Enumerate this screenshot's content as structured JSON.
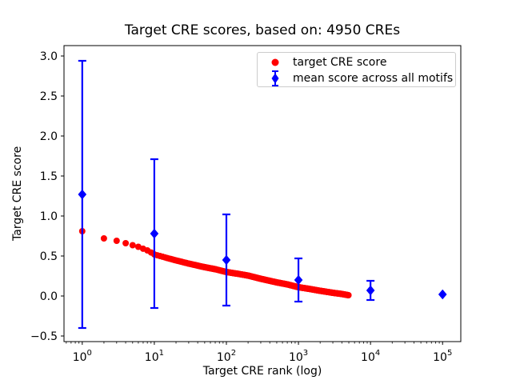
{
  "chart_data": {
    "type": "scatter",
    "title": "Target CRE scores, based on: 4950 CREs",
    "xlabel": "Target CRE rank (log)",
    "ylabel": "Target CRE score",
    "x_scale": "log",
    "xlim": [
      0.558,
      179000
    ],
    "ylim": [
      -0.57,
      3.13
    ],
    "grid": false,
    "legend_position": "upper right",
    "x_ticks": [
      {
        "value": 1,
        "base": "10",
        "exp": "0"
      },
      {
        "value": 10,
        "base": "10",
        "exp": "1"
      },
      {
        "value": 100,
        "base": "10",
        "exp": "2"
      },
      {
        "value": 1000,
        "base": "10",
        "exp": "3"
      },
      {
        "value": 10000,
        "base": "10",
        "exp": "4"
      },
      {
        "value": 100000,
        "base": "10",
        "exp": "5"
      }
    ],
    "y_ticks": [
      {
        "value": 3.0,
        "label": "3.0"
      },
      {
        "value": 2.5,
        "label": "2.5"
      },
      {
        "value": 2.0,
        "label": "2.0"
      },
      {
        "value": 1.5,
        "label": "1.5"
      },
      {
        "value": 1.0,
        "label": "1.0"
      },
      {
        "value": 0.5,
        "label": "0.5"
      },
      {
        "value": 0.0,
        "label": "0.0"
      },
      {
        "value": -0.5,
        "label": "−0.5"
      }
    ],
    "series": [
      {
        "name": "target CRE score",
        "type": "scatter",
        "marker": "circle",
        "color": "#ff0000",
        "n_points": 4950,
        "x_is_integer_rank": true,
        "control_points": [
          [
            1,
            0.81
          ],
          [
            2,
            0.72
          ],
          [
            3,
            0.69
          ],
          [
            4,
            0.66
          ],
          [
            5,
            0.635
          ],
          [
            6,
            0.615
          ],
          [
            8,
            0.57
          ],
          [
            10,
            0.52
          ],
          [
            15,
            0.475
          ],
          [
            20,
            0.445
          ],
          [
            30,
            0.405
          ],
          [
            50,
            0.36
          ],
          [
            70,
            0.335
          ],
          [
            100,
            0.3
          ],
          [
            150,
            0.275
          ],
          [
            200,
            0.255
          ],
          [
            300,
            0.215
          ],
          [
            500,
            0.17
          ],
          [
            700,
            0.145
          ],
          [
            1000,
            0.11
          ],
          [
            1500,
            0.085
          ],
          [
            2000,
            0.065
          ],
          [
            3000,
            0.04
          ],
          [
            4000,
            0.025
          ],
          [
            4950,
            0.01
          ]
        ]
      },
      {
        "name": "mean score across all motifs",
        "type": "errorbar",
        "marker": "diamond",
        "color": "#0000ff",
        "points": [
          {
            "x": 1,
            "mean": 1.27,
            "err": 1.67
          },
          {
            "x": 10,
            "mean": 0.78,
            "err": 0.93
          },
          {
            "x": 100,
            "mean": 0.45,
            "err": 0.57
          },
          {
            "x": 1000,
            "mean": 0.2,
            "err": 0.27
          },
          {
            "x": 10000,
            "mean": 0.07,
            "err": 0.12
          },
          {
            "x": 100000,
            "mean": 0.02,
            "err": 0.0
          }
        ]
      }
    ]
  }
}
